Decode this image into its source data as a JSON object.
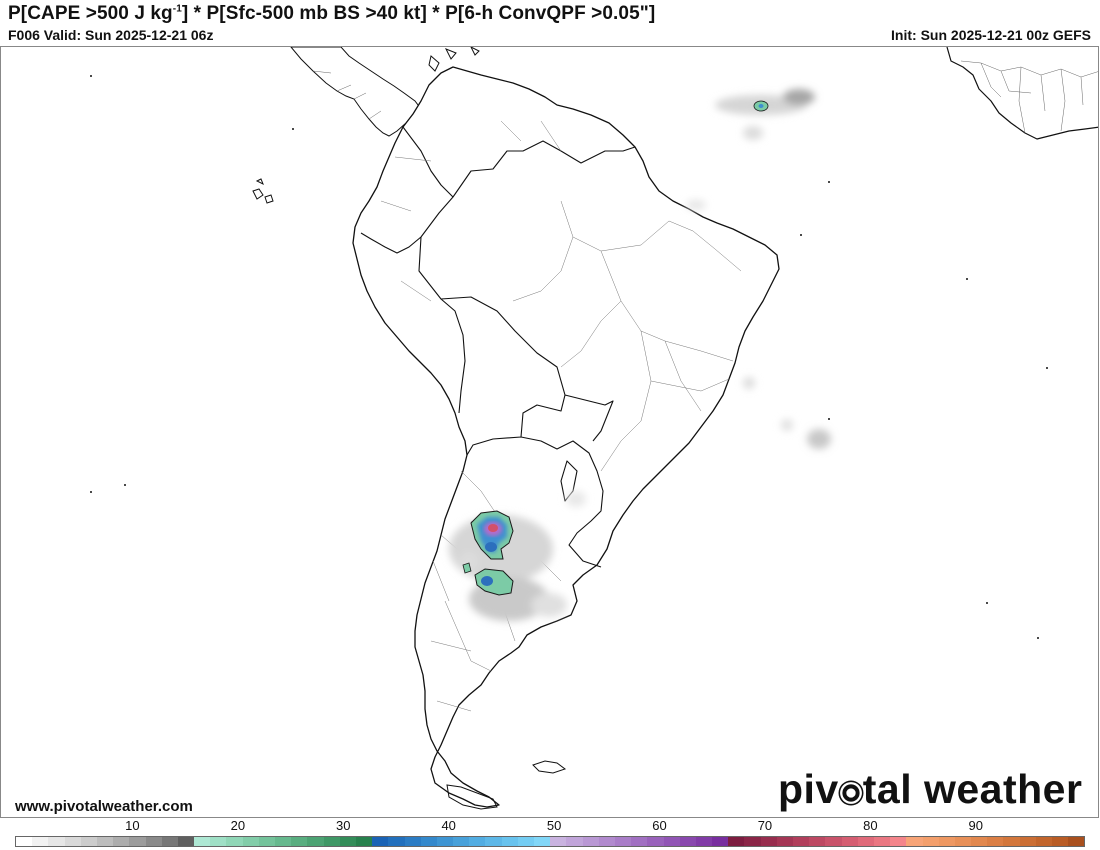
{
  "header": {
    "title_part1": "P[CAPE >500 J kg",
    "title_sup": "-1",
    "title_part2": "] * P[Sfc-500 mb BS >40 kt] * P[6-h ConvQPF >0.05\"]",
    "valid": "F006 Valid: Sun 2025-12-21 06z",
    "init": "Init: Sun 2025-12-21 00z GEFS"
  },
  "footer": {
    "website": "www.pivotalweather.com",
    "logo_part1": "piv",
    "logo_part2": "tal weather"
  },
  "colorbar": {
    "labels": [
      "10",
      "20",
      "30",
      "40",
      "50",
      "60",
      "70",
      "80",
      "90"
    ],
    "colors": [
      "#ffffff",
      "#f2f2f2",
      "#e6e6e6",
      "#d9d9d9",
      "#cccccc",
      "#bdbdbd",
      "#adadad",
      "#9c9c9c",
      "#8a8a8a",
      "#777777",
      "#5f5f5f",
      "#aee8d4",
      "#9fe0c6",
      "#90d7b7",
      "#82cda9",
      "#74c39b",
      "#66b98e",
      "#59ae80",
      "#4ca373",
      "#3f9866",
      "#338d59",
      "#27814d",
      "#1a63b5",
      "#2270bd",
      "#2b7cc4",
      "#3489cc",
      "#3e95d3",
      "#48a1da",
      "#52ade2",
      "#5db8e8",
      "#68c3ee",
      "#74cdf3",
      "#81d7f8",
      "#c9b3e0",
      "#c1a5da",
      "#b998d4",
      "#b18ace",
      "#a97dc8",
      "#a170c2",
      "#9962bb",
      "#9155b5",
      "#8948ae",
      "#813ba7",
      "#782e9f",
      "#7d1d40",
      "#8a2547",
      "#972d4e",
      "#a43655",
      "#b13f5c",
      "#bd4963",
      "#c9536b",
      "#d55e72",
      "#e06a7a",
      "#ea7782",
      "#f4858b",
      "#f7a477",
      "#f39f6c",
      "#ee9862",
      "#e89058",
      "#e2884e",
      "#db7f45",
      "#d3773c",
      "#cb6e34",
      "#c2652c",
      "#b95c25",
      "#a9501e"
    ]
  },
  "map": {
    "region": "South America",
    "probability_features": [
      {
        "name": "north-argentina-cluster",
        "max_probability": 70
      },
      {
        "name": "central-argentina-cluster",
        "max_probability": 40
      },
      {
        "name": "atlantic-cluster",
        "max_probability": 20
      }
    ]
  }
}
